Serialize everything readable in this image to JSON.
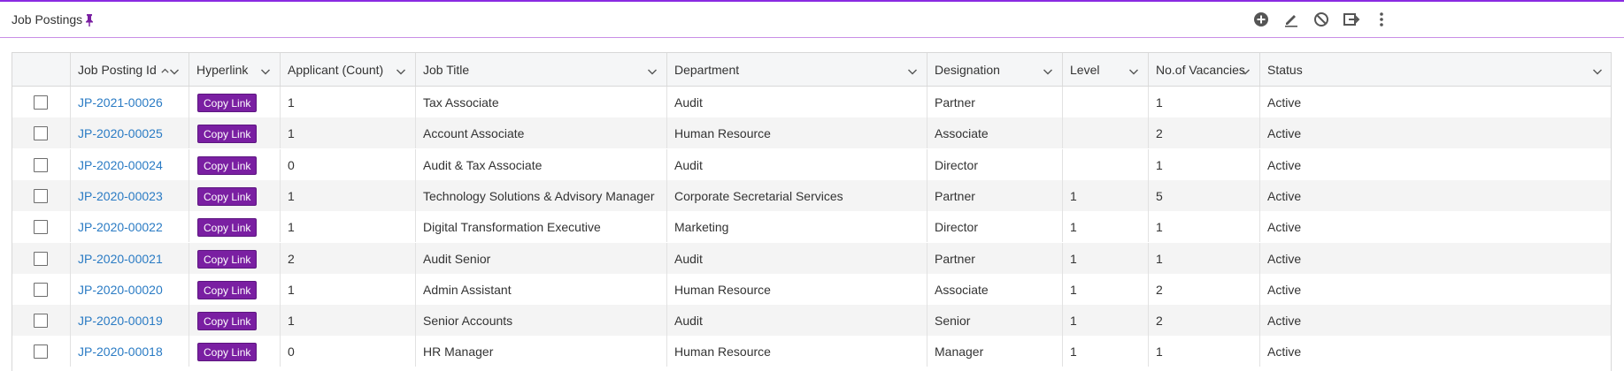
{
  "header": {
    "title": "Job Postings",
    "pin_icon": "pin-icon",
    "tools": [
      {
        "name": "add-icon"
      },
      {
        "name": "edit-icon"
      },
      {
        "name": "block-icon"
      },
      {
        "name": "export-icon"
      },
      {
        "name": "more-icon"
      }
    ]
  },
  "colors": {
    "accent": "#8a2be2",
    "button": "#7a1fa2",
    "link": "#2a7bc4"
  },
  "table": {
    "columns": [
      {
        "key": "select",
        "label": ""
      },
      {
        "key": "id",
        "label": "Job Posting Id",
        "sort": "asc"
      },
      {
        "key": "hyperlink",
        "label": "Hyperlink"
      },
      {
        "key": "applicants",
        "label": "Applicant (Count)"
      },
      {
        "key": "title",
        "label": "Job Title"
      },
      {
        "key": "department",
        "label": "Department"
      },
      {
        "key": "designation",
        "label": "Designation"
      },
      {
        "key": "level",
        "label": "Level"
      },
      {
        "key": "vacancies",
        "label": "No.of Vacancies"
      },
      {
        "key": "status",
        "label": "Status"
      }
    ],
    "copy_label": "Copy Link",
    "rows": [
      {
        "id": "JP-2021-00026",
        "applicants": "1",
        "title": "Tax Associate",
        "department": "Audit",
        "designation": "Partner",
        "level": "",
        "vacancies": "1",
        "status": "Active"
      },
      {
        "id": "JP-2020-00025",
        "applicants": "1",
        "title": "Account Associate",
        "department": "Human Resource",
        "designation": "Associate",
        "level": "",
        "vacancies": "2",
        "status": "Active"
      },
      {
        "id": "JP-2020-00024",
        "applicants": "0",
        "title": "Audit & Tax Associate",
        "department": "Audit",
        "designation": "Director",
        "level": "",
        "vacancies": "1",
        "status": "Active"
      },
      {
        "id": "JP-2020-00023",
        "applicants": "1",
        "title": "Technology Solutions & Advisory Manager",
        "department": "Corporate Secretarial Services",
        "designation": "Partner",
        "level": "1",
        "vacancies": "5",
        "status": "Active"
      },
      {
        "id": "JP-2020-00022",
        "applicants": "1",
        "title": "Digital Transformation Executive",
        "department": "Marketing",
        "designation": "Director",
        "level": "1",
        "vacancies": "1",
        "status": "Active"
      },
      {
        "id": "JP-2020-00021",
        "applicants": "2",
        "title": "Audit Senior",
        "department": "Audit",
        "designation": "Partner",
        "level": "1",
        "vacancies": "1",
        "status": "Active"
      },
      {
        "id": "JP-2020-00020",
        "applicants": "1",
        "title": "Admin Assistant",
        "department": "Human Resource",
        "designation": "Associate",
        "level": "1",
        "vacancies": "2",
        "status": "Active"
      },
      {
        "id": "JP-2020-00019",
        "applicants": "1",
        "title": "Senior Accounts",
        "department": "Audit",
        "designation": "Senior",
        "level": "1",
        "vacancies": "2",
        "status": "Active"
      },
      {
        "id": "JP-2020-00018",
        "applicants": "0",
        "title": "HR Manager",
        "department": "Human Resource",
        "designation": "Manager",
        "level": "1",
        "vacancies": "1",
        "status": "Active"
      }
    ]
  }
}
